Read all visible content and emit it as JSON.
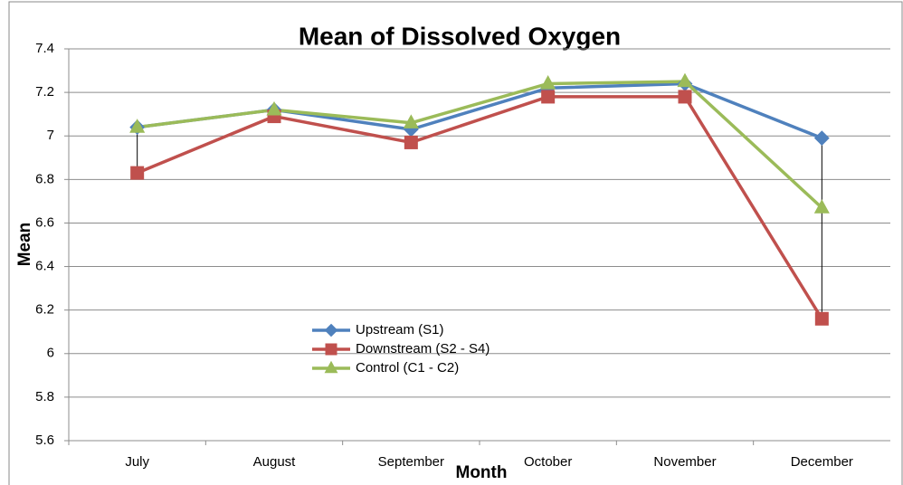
{
  "chart_data": {
    "type": "line",
    "title": "Mean of Dissolved Oxygen",
    "x_label": "Month",
    "y_label": "Mean",
    "categories": [
      "July",
      "August",
      "September",
      "October",
      "November",
      "December"
    ],
    "series": [
      {
        "name": "Upstream (S1)",
        "color": "#4f81bd",
        "marker": "diamond",
        "values": [
          7.04,
          7.12,
          7.03,
          7.22,
          7.24,
          6.99
        ]
      },
      {
        "name": "Downstream (S2 - S4)",
        "color": "#c0504d",
        "marker": "square",
        "values": [
          6.83,
          7.09,
          6.97,
          7.18,
          7.18,
          6.16
        ]
      },
      {
        "name": "Control (C1 - C2)",
        "color": "#9bbb59",
        "marker": "triangle",
        "values": [
          7.04,
          7.12,
          7.06,
          7.24,
          7.25,
          6.67
        ]
      }
    ],
    "ylim": [
      5.6,
      7.4
    ],
    "yticks": [
      5.6,
      5.8,
      6,
      6.2,
      6.4,
      6.6,
      6.8,
      7,
      7.2,
      7.4
    ],
    "grid": true,
    "high_low_lines": true,
    "legend": "center"
  }
}
